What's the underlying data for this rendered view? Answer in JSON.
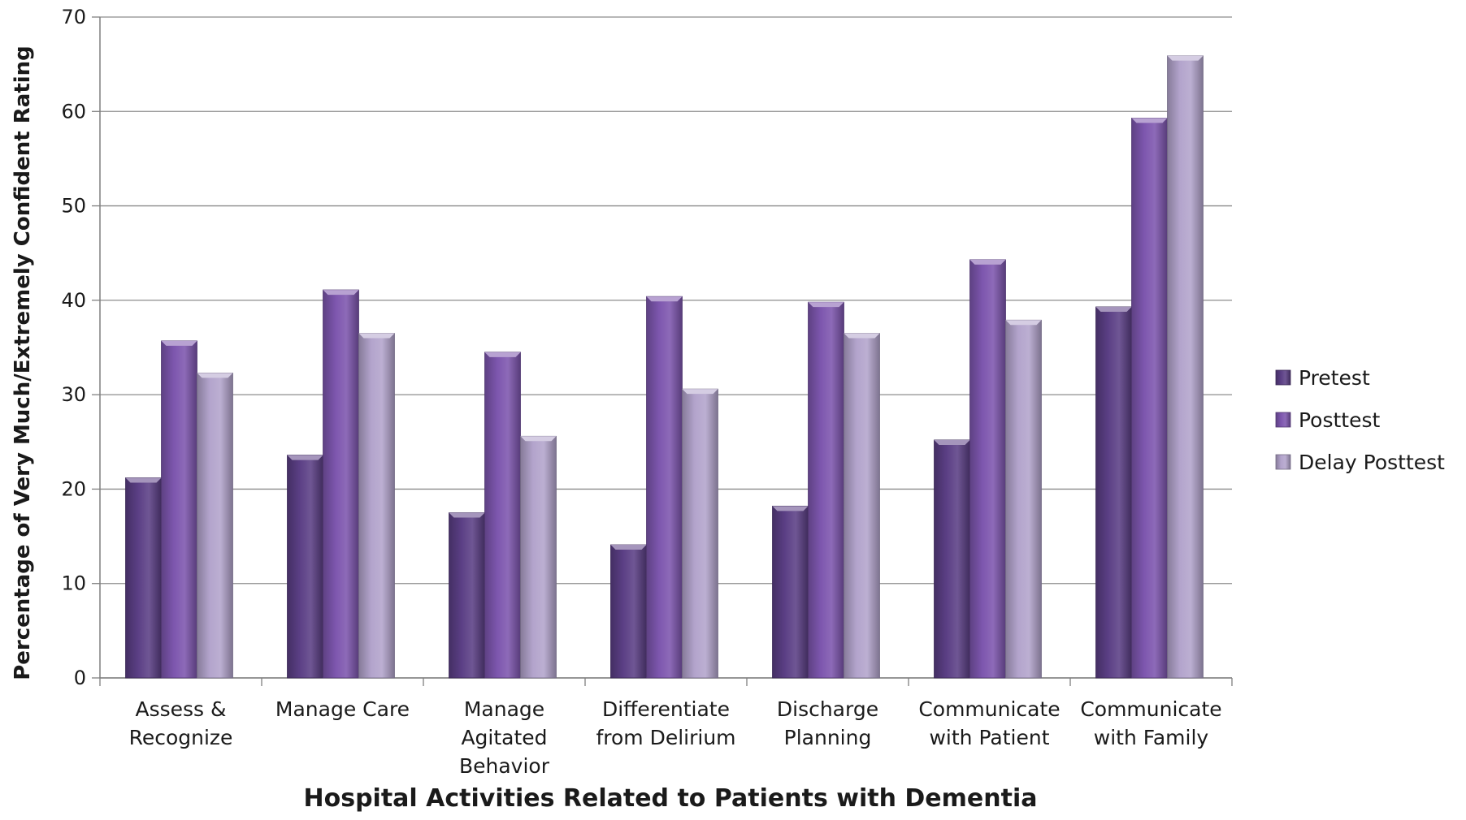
{
  "chart_data": {
    "type": "bar",
    "title": "",
    "xlabel": "Hospital Activities Related to Patients with Dementia",
    "ylabel": "Percentage of Very Much/Extremely Confident Rating",
    "ylim": [
      0,
      70
    ],
    "yticks": [
      "0",
      "10",
      "20",
      "30",
      "40",
      "50",
      "60",
      "70"
    ],
    "grid": true,
    "legend_position": "right",
    "categories": [
      [
        "Assess &",
        "Recognize"
      ],
      [
        "Manage Care"
      ],
      [
        "Manage",
        "Agitated",
        "Behavior"
      ],
      [
        "Differentiate",
        "from Delirium"
      ],
      [
        "Discharge",
        "Planning"
      ],
      [
        "Communicate",
        "with Patient"
      ],
      [
        "Communicate",
        "with Family"
      ]
    ],
    "series": [
      {
        "name": "Pretest",
        "color": "#5b3f85",
        "values": [
          21.2,
          23.6,
          17.5,
          14.1,
          18.2,
          25.2,
          39.3
        ]
      },
      {
        "name": "Posttest",
        "color": "#7d56ae",
        "values": [
          35.7,
          41.1,
          34.5,
          40.4,
          39.8,
          44.3,
          59.3
        ]
      },
      {
        "name": "Delay Posttest",
        "color": "#b3a4cc",
        "values": [
          32.3,
          36.5,
          25.6,
          30.6,
          36.5,
          37.9,
          65.9
        ]
      }
    ]
  }
}
